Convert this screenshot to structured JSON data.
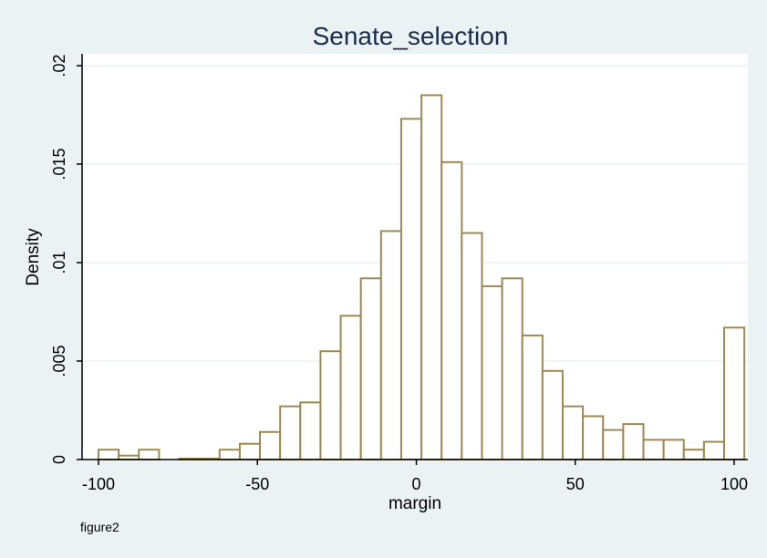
{
  "chart_data": {
    "type": "bar",
    "title": "Senate_selection",
    "xlabel": "margin",
    "ylabel": "Density",
    "note": "figure2",
    "xlim": [
      -102,
      104
    ],
    "ylim": [
      0,
      0.02
    ],
    "x_ticks": [
      -100,
      -50,
      0,
      50,
      100
    ],
    "x_tick_labels": [
      "-100",
      "-50",
      "0",
      "50",
      "100"
    ],
    "y_ticks": [
      0,
      0.005,
      0.01,
      0.015,
      0.02
    ],
    "y_tick_labels": [
      "0",
      ".005",
      ".01",
      ".015",
      ".02"
    ],
    "grid": true,
    "bin_width": 6.35,
    "bins": [
      {
        "x0": -100.0,
        "value": 0.0005
      },
      {
        "x0": -93.65,
        "value": 0.0002
      },
      {
        "x0": -87.3,
        "value": 0.0005
      },
      {
        "x0": -80.95,
        "value": 0.0
      },
      {
        "x0": -74.6,
        "value": 5e-05
      },
      {
        "x0": -68.25,
        "value": 5e-05
      },
      {
        "x0": -61.9,
        "value": 0.0005
      },
      {
        "x0": -55.55,
        "value": 0.0008
      },
      {
        "x0": -49.2,
        "value": 0.0014
      },
      {
        "x0": -42.85,
        "value": 0.0027
      },
      {
        "x0": -36.5,
        "value": 0.0029
      },
      {
        "x0": -30.15,
        "value": 0.0055
      },
      {
        "x0": -23.8,
        "value": 0.0073
      },
      {
        "x0": -17.45,
        "value": 0.0092
      },
      {
        "x0": -11.1,
        "value": 0.0116
      },
      {
        "x0": -4.75,
        "value": 0.0173
      },
      {
        "x0": 1.6,
        "value": 0.0185
      },
      {
        "x0": 7.95,
        "value": 0.0151
      },
      {
        "x0": 14.3,
        "value": 0.0115
      },
      {
        "x0": 20.65,
        "value": 0.0088
      },
      {
        "x0": 27.0,
        "value": 0.0092
      },
      {
        "x0": 33.35,
        "value": 0.0063
      },
      {
        "x0": 39.7,
        "value": 0.0045
      },
      {
        "x0": 46.05,
        "value": 0.0027
      },
      {
        "x0": 52.4,
        "value": 0.0022
      },
      {
        "x0": 58.75,
        "value": 0.0015
      },
      {
        "x0": 65.1,
        "value": 0.0018
      },
      {
        "x0": 71.45,
        "value": 0.001
      },
      {
        "x0": 77.8,
        "value": 0.001
      },
      {
        "x0": 84.15,
        "value": 0.0005
      },
      {
        "x0": 90.5,
        "value": 0.0009
      },
      {
        "x0": 96.85,
        "value": 0.0067
      }
    ],
    "colors": {
      "page_bg": "#eaf2f3",
      "plot_bg": "#ffffff",
      "bar_fill": "#ffffff",
      "bar_stroke": "#9c8a53",
      "grid": "#eaf2f3",
      "title": "#1a2b4c",
      "axis": "#000000"
    }
  }
}
